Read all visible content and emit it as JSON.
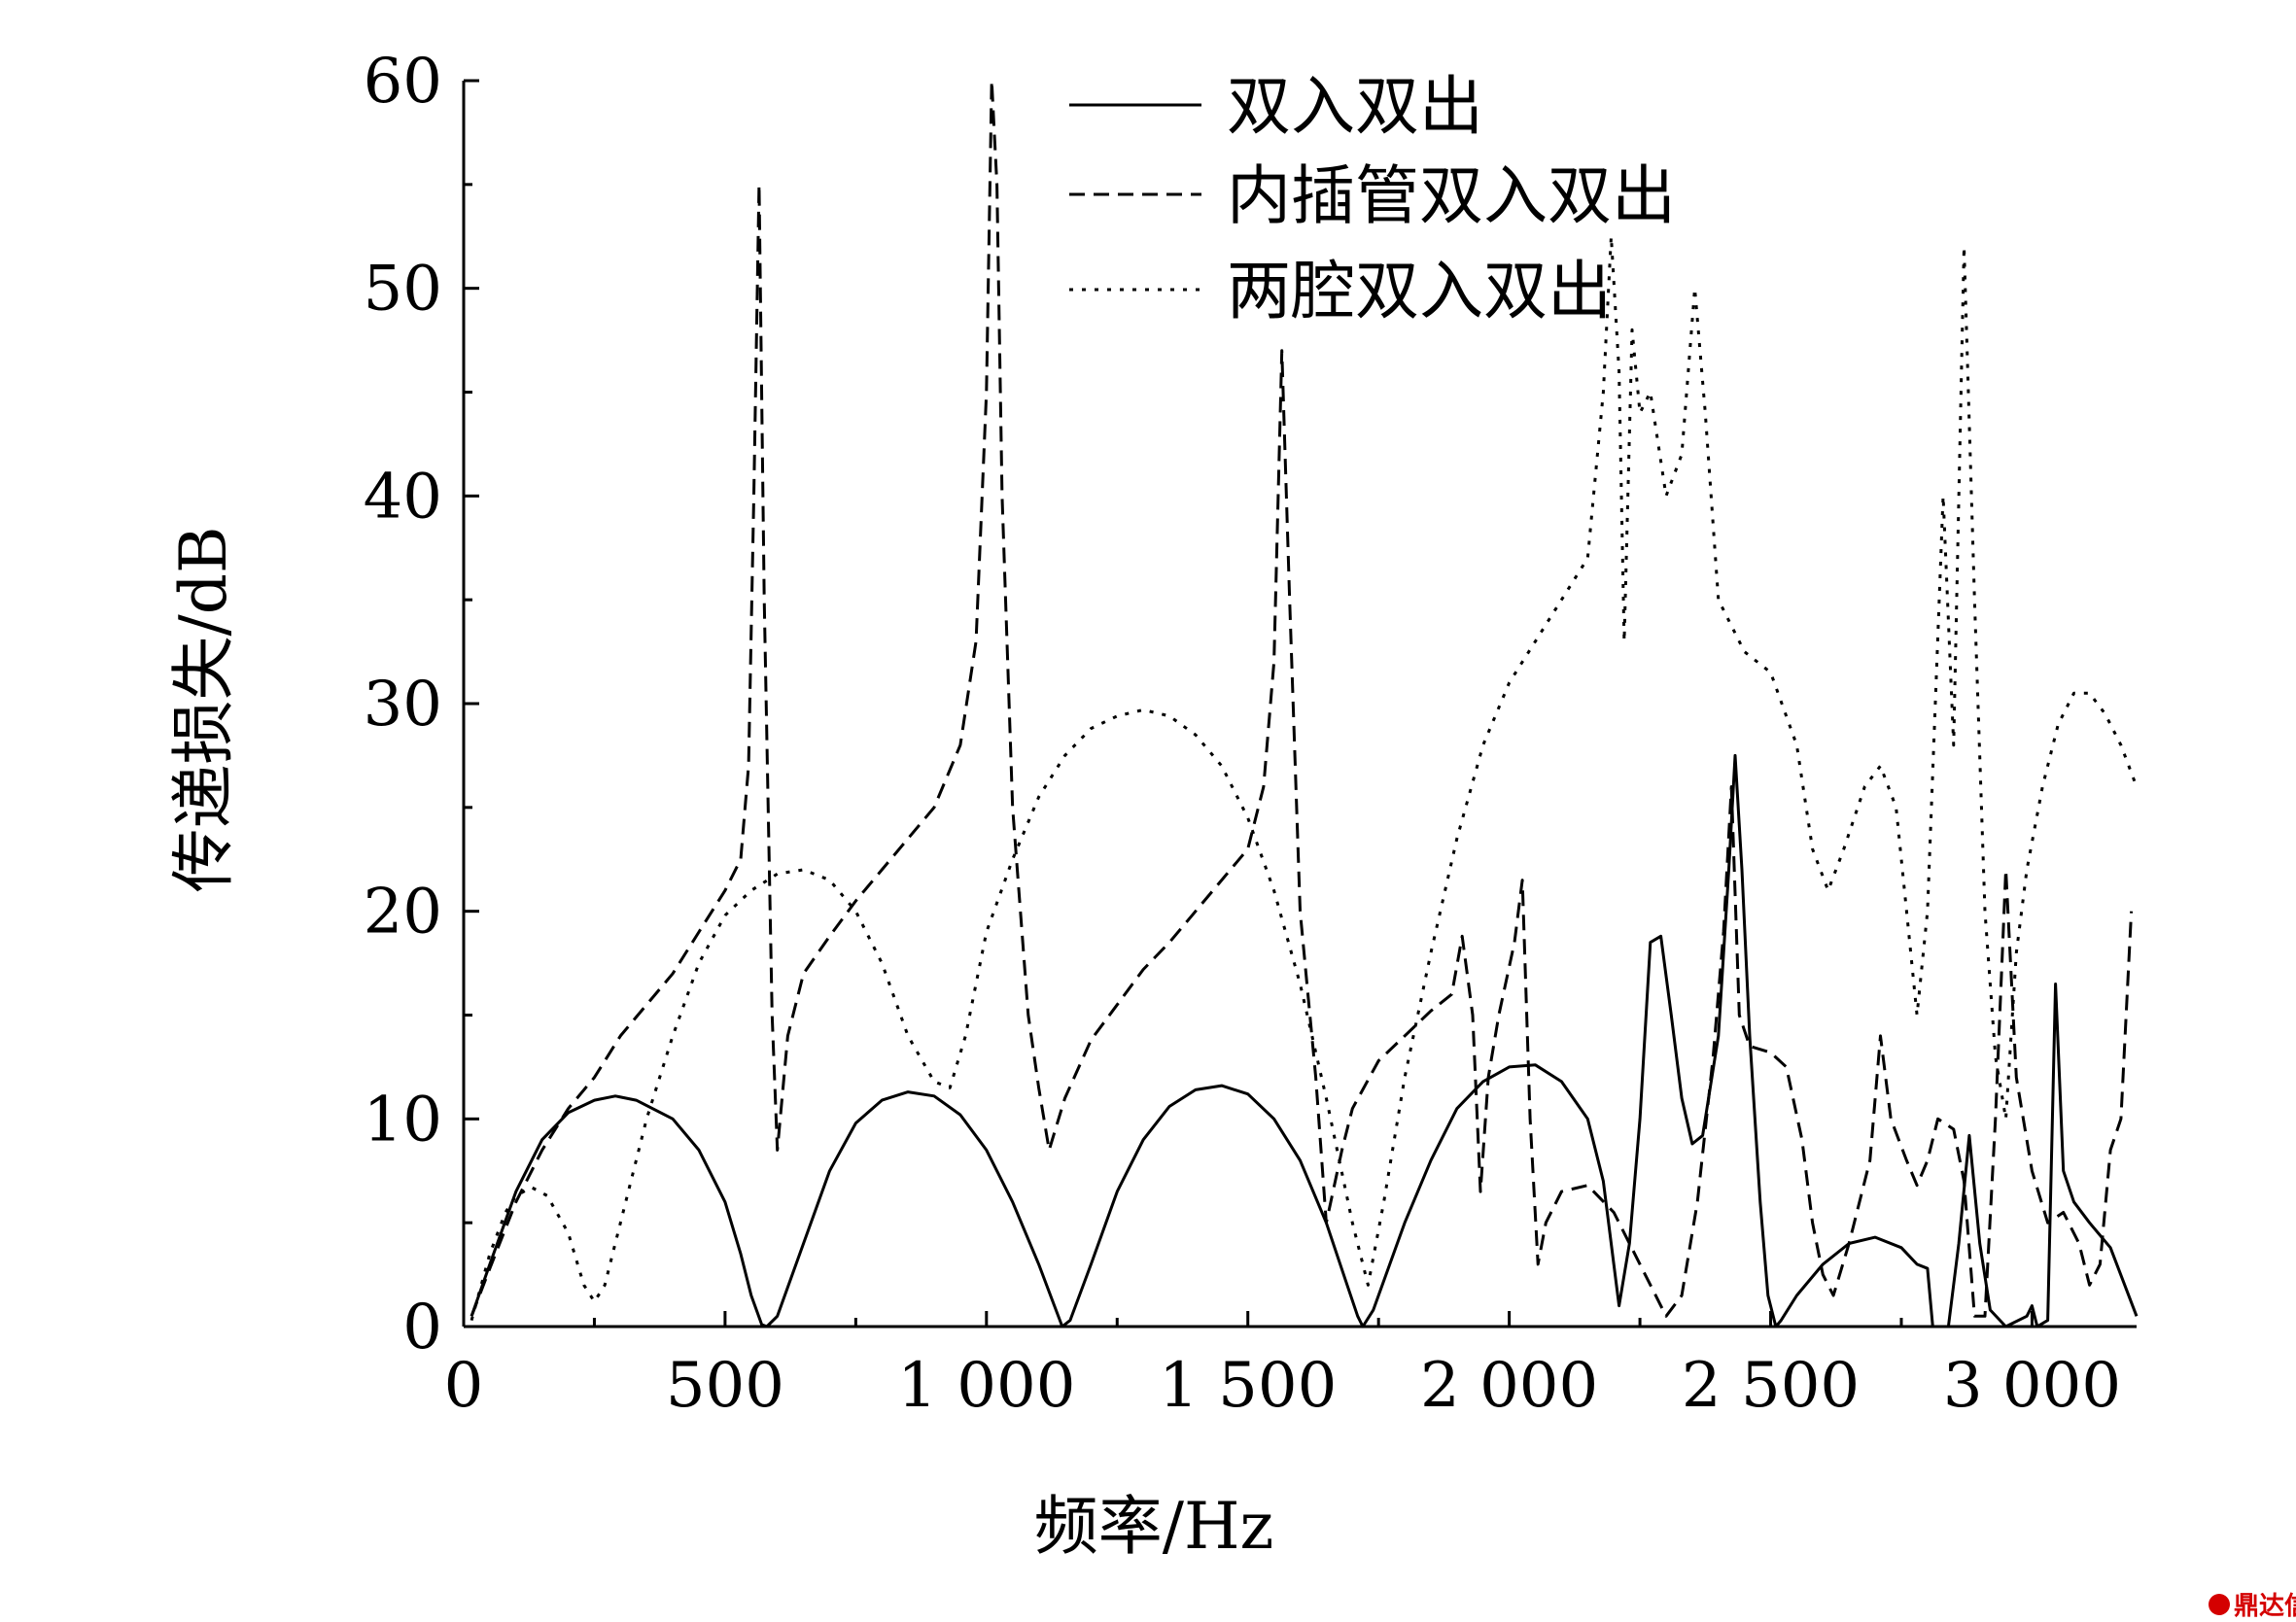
{
  "chart_data": {
    "type": "line",
    "title": "",
    "xlabel": "频率/Hz",
    "ylabel": "传递损失/dB",
    "xlim": [
      0,
      3200
    ],
    "ylim": [
      0,
      60
    ],
    "x_ticks": [
      0,
      500,
      1000,
      1500,
      2000,
      2500,
      3000
    ],
    "x_tick_labels": [
      "0",
      "500",
      "1 000",
      "1 500",
      "2 000",
      "2 500",
      "3 000"
    ],
    "y_ticks": [
      0,
      10,
      20,
      30,
      40,
      50,
      60
    ],
    "y_tick_labels": [
      "0",
      "10",
      "20",
      "30",
      "40",
      "50",
      "60"
    ],
    "grid": false,
    "legend_position": "top-right",
    "series": [
      {
        "name": "双入双出",
        "style": "solid",
        "color": "#000000",
        "points": [
          [
            15,
            0.5
          ],
          [
            50,
            3
          ],
          [
            100,
            6.5
          ],
          [
            150,
            9
          ],
          [
            200,
            10.3
          ],
          [
            250,
            10.9
          ],
          [
            290,
            11.1
          ],
          [
            330,
            10.9
          ],
          [
            400,
            10
          ],
          [
            450,
            8.5
          ],
          [
            500,
            6
          ],
          [
            530,
            3.5
          ],
          [
            550,
            1.5
          ],
          [
            570,
            0.1
          ],
          [
            580,
            0
          ],
          [
            600,
            0.5
          ],
          [
            650,
            4
          ],
          [
            700,
            7.5
          ],
          [
            750,
            9.8
          ],
          [
            800,
            10.9
          ],
          [
            850,
            11.3
          ],
          [
            900,
            11.1
          ],
          [
            950,
            10.2
          ],
          [
            1000,
            8.5
          ],
          [
            1050,
            6
          ],
          [
            1100,
            3
          ],
          [
            1130,
            1
          ],
          [
            1145,
            0
          ],
          [
            1160,
            0.3
          ],
          [
            1200,
            3
          ],
          [
            1250,
            6.5
          ],
          [
            1300,
            9
          ],
          [
            1350,
            10.6
          ],
          [
            1400,
            11.4
          ],
          [
            1450,
            11.6
          ],
          [
            1500,
            11.2
          ],
          [
            1550,
            10
          ],
          [
            1600,
            8
          ],
          [
            1650,
            5
          ],
          [
            1690,
            2
          ],
          [
            1710,
            0.5
          ],
          [
            1720,
            0
          ],
          [
            1740,
            0.8
          ],
          [
            1800,
            5
          ],
          [
            1850,
            8
          ],
          [
            1900,
            10.5
          ],
          [
            1950,
            11.8
          ],
          [
            2000,
            12.5
          ],
          [
            2050,
            12.6
          ],
          [
            2100,
            11.8
          ],
          [
            2150,
            10
          ],
          [
            2180,
            7
          ],
          [
            2200,
            3
          ],
          [
            2210,
            1
          ],
          [
            2230,
            4
          ],
          [
            2250,
            10
          ],
          [
            2270,
            18.5
          ],
          [
            2290,
            18.8
          ],
          [
            2310,
            15
          ],
          [
            2330,
            11
          ],
          [
            2350,
            8.8
          ],
          [
            2370,
            9.2
          ],
          [
            2400,
            14
          ],
          [
            2420,
            22
          ],
          [
            2432,
            27.5
          ],
          [
            2445,
            22
          ],
          [
            2460,
            14
          ],
          [
            2480,
            6
          ],
          [
            2495,
            1.5
          ],
          [
            2510,
            0
          ],
          [
            2520,
            0.3
          ],
          [
            2550,
            1.5
          ],
          [
            2600,
            3
          ],
          [
            2650,
            4
          ],
          [
            2700,
            4.3
          ],
          [
            2750,
            3.8
          ],
          [
            2780,
            3
          ],
          [
            2800,
            2.8
          ],
          [
            2810,
            0
          ],
          [
            2840,
            0
          ],
          [
            2860,
            4
          ],
          [
            2880,
            9.2
          ],
          [
            2900,
            4
          ],
          [
            2920,
            0.8
          ],
          [
            2950,
            0
          ],
          [
            2990,
            0.5
          ],
          [
            3000,
            1
          ],
          [
            3010,
            0
          ],
          [
            3030,
            0.3
          ],
          [
            3045,
            16.5
          ],
          [
            3060,
            7.5
          ],
          [
            3080,
            6
          ],
          [
            3110,
            5
          ],
          [
            3150,
            3.8
          ],
          [
            3200,
            0.5
          ]
        ]
      },
      {
        "name": "内插管双入双出",
        "style": "dashed",
        "color": "#000000",
        "points": [
          [
            15,
            0.5
          ],
          [
            50,
            2.8
          ],
          [
            100,
            6
          ],
          [
            150,
            8.5
          ],
          [
            200,
            10.5
          ],
          [
            250,
            12
          ],
          [
            300,
            14
          ],
          [
            350,
            15.5
          ],
          [
            400,
            17
          ],
          [
            450,
            19
          ],
          [
            500,
            21
          ],
          [
            530,
            22.5
          ],
          [
            545,
            27
          ],
          [
            555,
            40
          ],
          [
            565,
            55
          ],
          [
            575,
            35
          ],
          [
            590,
            15
          ],
          [
            600,
            8.5
          ],
          [
            620,
            14
          ],
          [
            650,
            17
          ],
          [
            700,
            18.8
          ],
          [
            750,
            20.5
          ],
          [
            800,
            22
          ],
          [
            850,
            23.5
          ],
          [
            900,
            25
          ],
          [
            950,
            28
          ],
          [
            980,
            33
          ],
          [
            1000,
            45
          ],
          [
            1010,
            60
          ],
          [
            1020,
            55
          ],
          [
            1030,
            40
          ],
          [
            1050,
            25
          ],
          [
            1080,
            15
          ],
          [
            1100,
            11.5
          ],
          [
            1120,
            8.5
          ],
          [
            1150,
            11
          ],
          [
            1200,
            13.8
          ],
          [
            1250,
            15.5
          ],
          [
            1300,
            17.2
          ],
          [
            1350,
            18.5
          ],
          [
            1400,
            20
          ],
          [
            1450,
            21.5
          ],
          [
            1500,
            23
          ],
          [
            1530,
            26
          ],
          [
            1550,
            32
          ],
          [
            1565,
            47
          ],
          [
            1580,
            35
          ],
          [
            1600,
            20
          ],
          [
            1630,
            12
          ],
          [
            1650,
            5
          ],
          [
            1680,
            8.5
          ],
          [
            1700,
            10.5
          ],
          [
            1750,
            12.8
          ],
          [
            1800,
            14
          ],
          [
            1850,
            15.2
          ],
          [
            1890,
            16
          ],
          [
            1910,
            18.8
          ],
          [
            1930,
            15
          ],
          [
            1945,
            6.5
          ],
          [
            1960,
            12
          ],
          [
            1980,
            15
          ],
          [
            2010,
            18.5
          ],
          [
            2025,
            21.5
          ],
          [
            2040,
            10
          ],
          [
            2055,
            3
          ],
          [
            2070,
            5
          ],
          [
            2100,
            6.5
          ],
          [
            2150,
            6.8
          ],
          [
            2200,
            5.5
          ],
          [
            2250,
            3
          ],
          [
            2300,
            0.5
          ],
          [
            2330,
            1.5
          ],
          [
            2360,
            6
          ],
          [
            2390,
            13
          ],
          [
            2410,
            19
          ],
          [
            2425,
            26
          ],
          [
            2440,
            15
          ],
          [
            2460,
            13.5
          ],
          [
            2500,
            13.2
          ],
          [
            2530,
            12.5
          ],
          [
            2560,
            9
          ],
          [
            2580,
            5
          ],
          [
            2600,
            2.5
          ],
          [
            2620,
            1.5
          ],
          [
            2650,
            4
          ],
          [
            2690,
            8
          ],
          [
            2710,
            14
          ],
          [
            2730,
            10
          ],
          [
            2760,
            8
          ],
          [
            2780,
            6.8
          ],
          [
            2800,
            8
          ],
          [
            2820,
            10
          ],
          [
            2850,
            9.5
          ],
          [
            2870,
            7
          ],
          [
            2890,
            0.5
          ],
          [
            2910,
            0.5
          ],
          [
            2930,
            10
          ],
          [
            2950,
            22
          ],
          [
            2970,
            12
          ],
          [
            3000,
            7.5
          ],
          [
            3030,
            5
          ],
          [
            3060,
            5.5
          ],
          [
            3090,
            4
          ],
          [
            3110,
            2
          ],
          [
            3130,
            3
          ],
          [
            3150,
            8.5
          ],
          [
            3170,
            10
          ],
          [
            3190,
            20
          ]
        ]
      },
      {
        "name": "两腔双入双出",
        "style": "dotted",
        "color": "#000000",
        "points": [
          [
            15,
            0.3
          ],
          [
            50,
            3.5
          ],
          [
            80,
            5.5
          ],
          [
            100,
            6.3
          ],
          [
            130,
            6.7
          ],
          [
            160,
            6.3
          ],
          [
            200,
            4.5
          ],
          [
            230,
            2
          ],
          [
            250,
            1.2
          ],
          [
            270,
            2
          ],
          [
            300,
            5
          ],
          [
            350,
            10
          ],
          [
            400,
            14
          ],
          [
            450,
            17.5
          ],
          [
            500,
            19.8
          ],
          [
            550,
            21
          ],
          [
            600,
            21.8
          ],
          [
            650,
            22
          ],
          [
            700,
            21.5
          ],
          [
            750,
            20
          ],
          [
            800,
            17.5
          ],
          [
            850,
            14
          ],
          [
            900,
            11.8
          ],
          [
            930,
            11.5
          ],
          [
            960,
            14
          ],
          [
            1000,
            19
          ],
          [
            1050,
            22.5
          ],
          [
            1100,
            25.5
          ],
          [
            1150,
            27.5
          ],
          [
            1200,
            28.8
          ],
          [
            1250,
            29.4
          ],
          [
            1300,
            29.7
          ],
          [
            1350,
            29.4
          ],
          [
            1400,
            28.5
          ],
          [
            1450,
            27
          ],
          [
            1500,
            24.5
          ],
          [
            1550,
            21
          ],
          [
            1600,
            16.5
          ],
          [
            1650,
            11
          ],
          [
            1700,
            5
          ],
          [
            1730,
            2
          ],
          [
            1760,
            6
          ],
          [
            1800,
            12
          ],
          [
            1850,
            18
          ],
          [
            1900,
            23.5
          ],
          [
            1950,
            28
          ],
          [
            2000,
            31
          ],
          [
            2050,
            33
          ],
          [
            2100,
            35
          ],
          [
            2150,
            37
          ],
          [
            2180,
            45
          ],
          [
            2195,
            52.5
          ],
          [
            2210,
            46
          ],
          [
            2220,
            33
          ],
          [
            2235,
            48
          ],
          [
            2250,
            44
          ],
          [
            2270,
            45
          ],
          [
            2300,
            40
          ],
          [
            2330,
            42
          ],
          [
            2355,
            50
          ],
          [
            2375,
            44
          ],
          [
            2400,
            35
          ],
          [
            2450,
            32.5
          ],
          [
            2500,
            31.5
          ],
          [
            2550,
            28
          ],
          [
            2580,
            23
          ],
          [
            2610,
            21
          ],
          [
            2640,
            23
          ],
          [
            2680,
            26
          ],
          [
            2710,
            27
          ],
          [
            2740,
            25
          ],
          [
            2760,
            20
          ],
          [
            2780,
            15
          ],
          [
            2800,
            20
          ],
          [
            2830,
            40
          ],
          [
            2850,
            28
          ],
          [
            2870,
            52
          ],
          [
            2890,
            35
          ],
          [
            2910,
            20
          ],
          [
            2930,
            13
          ],
          [
            2950,
            10
          ],
          [
            2970,
            18
          ],
          [
            2990,
            22
          ],
          [
            3020,
            26
          ],
          [
            3050,
            29
          ],
          [
            3080,
            30.5
          ],
          [
            3110,
            30.5
          ],
          [
            3140,
            29.5
          ],
          [
            3170,
            28
          ],
          [
            3200,
            26
          ]
        ]
      }
    ],
    "watermark": "鼎达信"
  }
}
